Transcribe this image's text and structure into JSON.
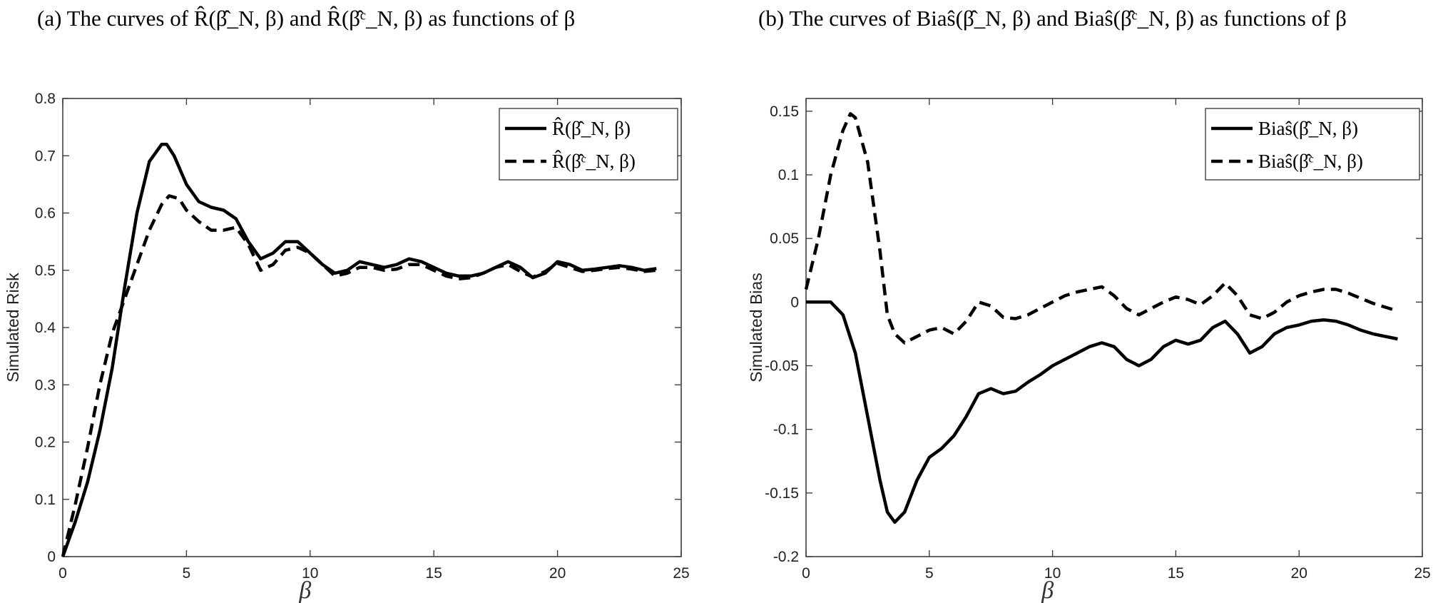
{
  "captions": {
    "a": "(a) The curves of R̂(β̂_N, β) and R̂(β̂ᶜ_N, β) as functions of β",
    "b": "(b) The curves of Biaŝ(β̂_N, β) and Biaŝ(β̂ᶜ_N, β) as functions of β"
  },
  "chart_data": [
    {
      "type": "line",
      "title": "",
      "xlabel": "β",
      "ylabel": "Simulated Risk",
      "xlim": [
        0,
        25
      ],
      "ylim": [
        0,
        0.8
      ],
      "xticks": [
        0,
        5,
        10,
        15,
        20,
        25
      ],
      "yticks": [
        0,
        0.1,
        0.2,
        0.3,
        0.4,
        0.5,
        0.6,
        0.7,
        0.8
      ],
      "yticklabels": [
        "0",
        "0.1",
        "0.2",
        "0.3",
        "0.4",
        "0.5",
        "0.6",
        "0.7",
        "0.8"
      ],
      "grid": false,
      "legend": "top-right",
      "series": [
        {
          "name": "R̂(β̂_N, β)",
          "style": "solid",
          "color": "#000000",
          "x": [
            0,
            0.5,
            1,
            1.5,
            2,
            2.5,
            3,
            3.5,
            4,
            4.2,
            4.5,
            5,
            5.5,
            6,
            6.5,
            7,
            7.5,
            8,
            8.5,
            9,
            9.5,
            10,
            10.5,
            11,
            11.5,
            12,
            12.5,
            13,
            13.5,
            14,
            14.5,
            15,
            15.5,
            16,
            16.5,
            17,
            17.5,
            18,
            18.5,
            19,
            19.5,
            20,
            20.5,
            21,
            21.5,
            22,
            22.5,
            23,
            23.5,
            24
          ],
          "y": [
            0,
            0.06,
            0.13,
            0.22,
            0.33,
            0.47,
            0.6,
            0.69,
            0.72,
            0.72,
            0.7,
            0.65,
            0.62,
            0.61,
            0.605,
            0.59,
            0.55,
            0.52,
            0.53,
            0.55,
            0.55,
            0.53,
            0.51,
            0.495,
            0.5,
            0.515,
            0.51,
            0.505,
            0.51,
            0.52,
            0.515,
            0.505,
            0.495,
            0.49,
            0.49,
            0.495,
            0.505,
            0.515,
            0.505,
            0.487,
            0.495,
            0.515,
            0.51,
            0.5,
            0.502,
            0.505,
            0.508,
            0.505,
            0.5,
            0.503
          ]
        },
        {
          "name": "R̂(β̂ᶜ_N, β)",
          "style": "dashed",
          "color": "#000000",
          "x": [
            0,
            0.5,
            1,
            1.5,
            2,
            2.5,
            3,
            3.5,
            4,
            4.3,
            4.7,
            5,
            5.5,
            6,
            6.5,
            7,
            7.5,
            8,
            8.5,
            9,
            9.5,
            10,
            10.5,
            11,
            11.5,
            12,
            12.5,
            13,
            13.5,
            14,
            14.5,
            15,
            15.5,
            16,
            16.5,
            17,
            17.5,
            18,
            18.5,
            19,
            19.5,
            20,
            20.5,
            21,
            21.5,
            22,
            22.5,
            23,
            23.5,
            24
          ],
          "y": [
            0,
            0.09,
            0.19,
            0.3,
            0.39,
            0.45,
            0.51,
            0.57,
            0.615,
            0.63,
            0.625,
            0.605,
            0.585,
            0.57,
            0.57,
            0.575,
            0.545,
            0.5,
            0.51,
            0.535,
            0.54,
            0.53,
            0.51,
            0.49,
            0.495,
            0.505,
            0.505,
            0.5,
            0.502,
            0.51,
            0.51,
            0.5,
            0.49,
            0.485,
            0.487,
            0.495,
            0.505,
            0.51,
            0.498,
            0.488,
            0.498,
            0.512,
            0.505,
            0.498,
            0.5,
            0.503,
            0.505,
            0.502,
            0.498,
            0.5
          ]
        }
      ]
    },
    {
      "type": "line",
      "title": "",
      "xlabel": "β",
      "ylabel": "Simulated Bias",
      "xlim": [
        0,
        25
      ],
      "ylim": [
        -0.2,
        0.16
      ],
      "xticks": [
        0,
        5,
        10,
        15,
        20,
        25
      ],
      "yticks": [
        -0.2,
        -0.15,
        -0.1,
        -0.05,
        0,
        0.05,
        0.1,
        0.15
      ],
      "yticklabels": [
        "-0.2",
        "-0.15",
        "-0.1",
        "-0.05",
        "0",
        "0.05",
        "0.1",
        "0.15"
      ],
      "grid": false,
      "legend": "top-right",
      "series": [
        {
          "name": "Biaŝ(β̂_N, β)",
          "style": "solid",
          "color": "#000000",
          "x": [
            0,
            0.5,
            1,
            1.5,
            2,
            2.5,
            3,
            3.3,
            3.6,
            4,
            4.5,
            5,
            5.5,
            6,
            6.5,
            7,
            7.5,
            8,
            8.5,
            9,
            9.5,
            10,
            10.5,
            11,
            11.5,
            12,
            12.5,
            13,
            13.5,
            14,
            14.5,
            15,
            15.5,
            16,
            16.5,
            17,
            17.5,
            18,
            18.5,
            19,
            19.5,
            20,
            20.5,
            21,
            21.5,
            22,
            22.5,
            23,
            23.5,
            24
          ],
          "y": [
            0,
            0,
            0,
            -0.01,
            -0.04,
            -0.09,
            -0.14,
            -0.165,
            -0.173,
            -0.165,
            -0.14,
            -0.122,
            -0.115,
            -0.105,
            -0.09,
            -0.072,
            -0.068,
            -0.072,
            -0.07,
            -0.063,
            -0.057,
            -0.05,
            -0.045,
            -0.04,
            -0.035,
            -0.032,
            -0.035,
            -0.045,
            -0.05,
            -0.045,
            -0.035,
            -0.03,
            -0.033,
            -0.03,
            -0.02,
            -0.015,
            -0.025,
            -0.04,
            -0.035,
            -0.025,
            -0.02,
            -0.018,
            -0.015,
            -0.014,
            -0.015,
            -0.018,
            -0.022,
            -0.025,
            -0.027,
            -0.029
          ]
        },
        {
          "name": "Biaŝ(β̂ᶜ_N, β)",
          "style": "dashed",
          "color": "#000000",
          "x": [
            0,
            0.5,
            1,
            1.5,
            1.8,
            2,
            2.5,
            3,
            3.3,
            3.6,
            4,
            4.5,
            5,
            5.5,
            6,
            6.5,
            7,
            7.5,
            8,
            8.5,
            9,
            9.5,
            10,
            10.5,
            11,
            11.5,
            12,
            12.5,
            13,
            13.5,
            14,
            14.5,
            15,
            15.5,
            16,
            16.5,
            17,
            17.5,
            18,
            18.5,
            19,
            19.5,
            20,
            20.5,
            21,
            21.5,
            22,
            22.5,
            23,
            23.5,
            24
          ],
          "y": [
            0.01,
            0.05,
            0.1,
            0.135,
            0.148,
            0.145,
            0.11,
            0.04,
            -0.01,
            -0.025,
            -0.032,
            -0.027,
            -0.022,
            -0.02,
            -0.025,
            -0.015,
            0,
            -0.003,
            -0.012,
            -0.013,
            -0.01,
            -0.005,
            0,
            0.005,
            0.008,
            0.01,
            0.012,
            0.005,
            -0.005,
            -0.01,
            -0.005,
            0,
            0.004,
            0.002,
            -0.002,
            0.005,
            0.015,
            0.005,
            -0.01,
            -0.013,
            -0.008,
            0,
            0.005,
            0.008,
            0.01,
            0.01,
            0.007,
            0.003,
            -0.001,
            -0.004,
            -0.007
          ]
        }
      ]
    }
  ]
}
